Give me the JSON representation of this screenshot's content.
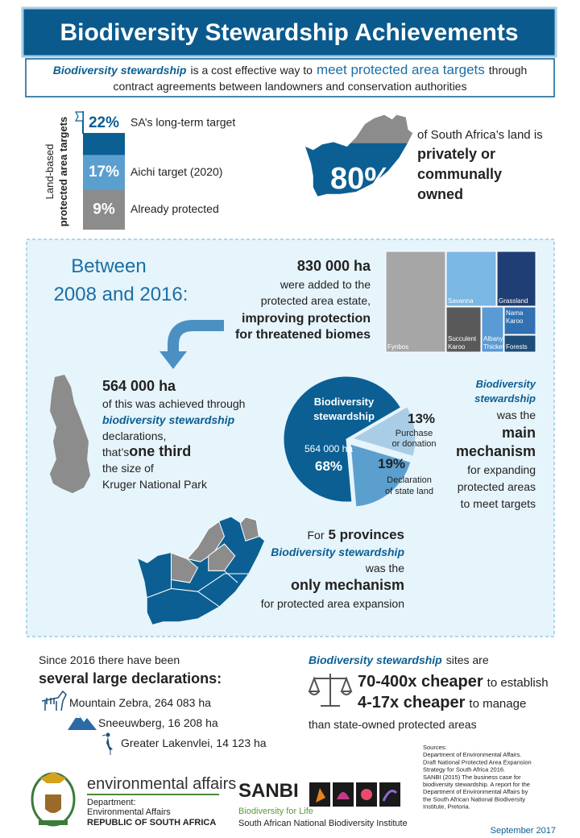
{
  "header": {
    "title": "Biodiversity Stewardship Achievements",
    "intro": [
      "Biodiversity stewardship",
      "is a cost effective way to",
      "meet protected area targets",
      "through",
      "contract agreements between landowners and conservation authorities"
    ]
  },
  "targets": {
    "axis_label": [
      "Land-based",
      "protected area targets"
    ],
    "values": [
      22,
      17,
      9
    ],
    "value_labels": [
      "22%",
      "17%",
      "9%"
    ],
    "labels": [
      "SA’s long-term target",
      "Aichi target (2020)",
      "Already protected"
    ],
    "colors": [
      "#0b5f93",
      "#5b9fcf",
      "#8c8c8c"
    ]
  },
  "ownership": {
    "value_label": "80%",
    "text": [
      "of South Africa’s land is",
      "privately or",
      "communally",
      "owned"
    ]
  },
  "period": {
    "heading": [
      "Between",
      "2008 and 2016:"
    ],
    "added": [
      "830 000 ha",
      "were added to the",
      "protected area estate,",
      "improving protection",
      "for threatened biomes"
    ]
  },
  "biomes": [
    [
      "Fynbos"
    ],
    [
      "Savanna"
    ],
    [
      "Grassland"
    ],
    [
      "Succulent",
      "Karoo"
    ],
    [
      "Albany",
      "Thicket"
    ],
    [
      "Nama",
      "Karoo"
    ],
    [
      "Forests"
    ]
  ],
  "stewardship": [
    "564 000 ha",
    "of this was achieved through",
    "biodiversity stewardship",
    "declarations,",
    "that’s",
    "one third",
    "the size of",
    "Kruger National Park"
  ],
  "pie": {
    "values": [
      68,
      13,
      19
    ],
    "value_labels": [
      "68%",
      "13%",
      "19%"
    ],
    "labels": [
      [
        "Biodiversity",
        "stewardship"
      ],
      [
        "Purchase",
        "or donation"
      ],
      [
        "Declaration",
        "of state land"
      ]
    ],
    "sublabel": "564 000 ha",
    "colors": [
      "#0b5f93",
      "#a9cde6",
      "#5b9fcf"
    ]
  },
  "mechanism": [
    "Biodiversity",
    "stewardship",
    "was the",
    "main",
    "mechanism",
    "for expanding",
    "protected areas",
    "to meet targets"
  ],
  "provinces": [
    "For",
    "5 provinces",
    "Biodiversity stewardship",
    "was the",
    "only mechanism",
    "for protected area expansion"
  ],
  "since": {
    "lines": [
      "Since 2016 there have been",
      "several large declarations:"
    ],
    "items": [
      "Mountain Zebra, 264 083 ha",
      "Sneeuwberg, 16 208 ha",
      "Greater Lakenvlei, 14 123 ha"
    ]
  },
  "cheaper": {
    "lead": [
      "Biodiversity stewardship",
      "sites are"
    ],
    "lines": [
      [
        "70-400x cheaper",
        "to establish"
      ],
      [
        "4-17x cheaper",
        "to manage"
      ]
    ],
    "tail": "than state-owned protected areas"
  },
  "logos": {
    "dea": [
      "environmental affairs",
      "Department:",
      "Environmental Affairs",
      "REPUBLIC OF SOUTH AFRICA"
    ],
    "sanbi": [
      "SANBI",
      "Biodiversity for Life",
      "South African National Biodiversity Institute"
    ]
  },
  "sources": [
    "Sources:",
    "Department of Environmental Affairs.",
    "Draft National Protected Area Expansion",
    "Strategy for South Africa 2016.",
    "SANBI (2015) The business case for",
    "biodiversity stewardship. A report for the",
    "Department of Environmental Affairs by",
    "the South African National Biodiversity",
    "Institute, Pretoria."
  ],
  "date": "September 2017"
}
